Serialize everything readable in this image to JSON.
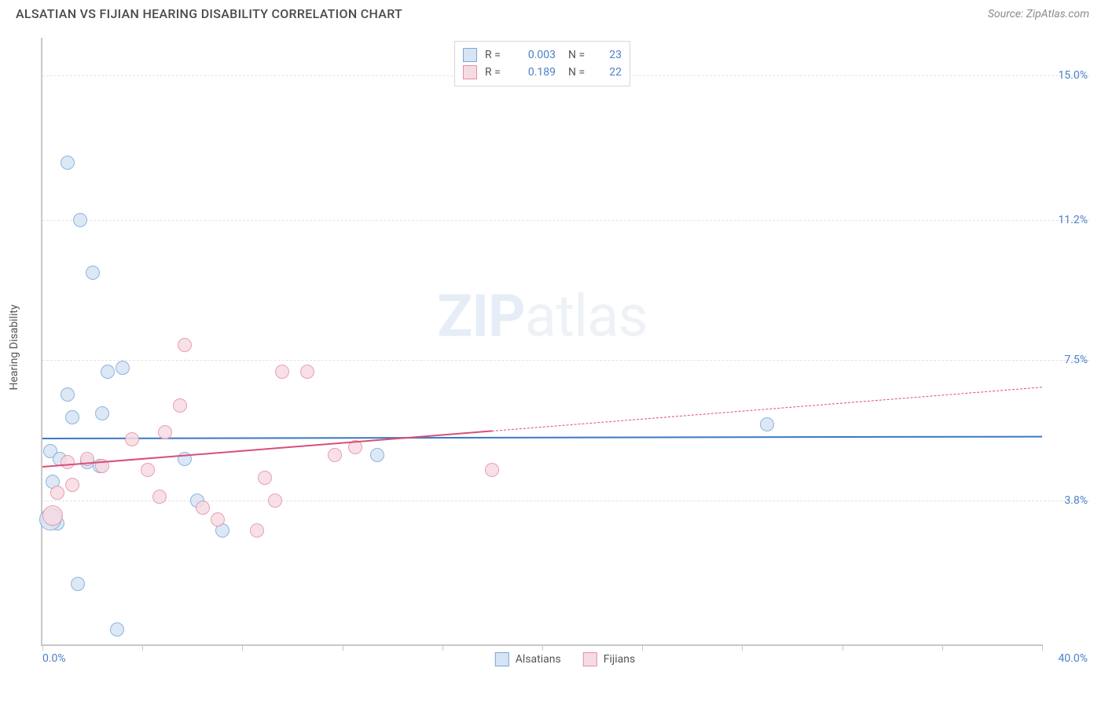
{
  "header": {
    "title": "ALSATIAN VS FIJIAN HEARING DISABILITY CORRELATION CHART",
    "source": "Source: ZipAtlas.com"
  },
  "watermark": {
    "prefix": "ZIP",
    "suffix": "atlas"
  },
  "axes": {
    "y_title": "Hearing Disability",
    "x_min_label": "0.0%",
    "x_max_label": "40.0%",
    "xlim": [
      0,
      40
    ],
    "ylim": [
      0,
      16
    ],
    "y_ticks": [
      {
        "value": 3.8,
        "label": "3.8%"
      },
      {
        "value": 7.5,
        "label": "7.5%"
      },
      {
        "value": 11.2,
        "label": "11.2%"
      },
      {
        "value": 15.0,
        "label": "15.0%"
      }
    ],
    "x_tick_positions": [
      0,
      4,
      8,
      12,
      16,
      20,
      24,
      28,
      32,
      36,
      40
    ],
    "grid_color": "#e3e3e3",
    "axis_color": "#c8c8c8",
    "label_color": "#4a7fc9",
    "label_fontsize": 14
  },
  "series": [
    {
      "id": "alsatians",
      "label": "Alsatians",
      "fill": "#d6e4f4",
      "stroke": "#7ba7d9",
      "marker_radius": 9,
      "marker_opacity": 0.85,
      "R": "0.003",
      "N": "23",
      "trend": {
        "color": "#3b78c4",
        "x0": 0,
        "y0": 5.45,
        "x1": 40,
        "y1": 5.5,
        "solid_until_x": 40
      },
      "points": [
        {
          "x": 1.0,
          "y": 12.7
        },
        {
          "x": 1.5,
          "y": 11.2
        },
        {
          "x": 2.0,
          "y": 9.8
        },
        {
          "x": 1.0,
          "y": 6.6
        },
        {
          "x": 2.6,
          "y": 7.2
        },
        {
          "x": 3.2,
          "y": 7.3
        },
        {
          "x": 1.2,
          "y": 6.0
        },
        {
          "x": 2.4,
          "y": 6.1
        },
        {
          "x": 0.3,
          "y": 5.1
        },
        {
          "x": 1.8,
          "y": 4.8
        },
        {
          "x": 2.3,
          "y": 4.7
        },
        {
          "x": 0.4,
          "y": 4.3
        },
        {
          "x": 0.5,
          "y": 3.4
        },
        {
          "x": 0.6,
          "y": 3.2
        },
        {
          "x": 6.2,
          "y": 3.8
        },
        {
          "x": 7.2,
          "y": 3.0
        },
        {
          "x": 3.0,
          "y": 0.4
        },
        {
          "x": 1.4,
          "y": 1.6
        },
        {
          "x": 13.4,
          "y": 5.0
        },
        {
          "x": 29.0,
          "y": 5.8
        },
        {
          "x": 0.3,
          "y": 3.3,
          "r": 14
        },
        {
          "x": 0.7,
          "y": 4.9
        },
        {
          "x": 5.7,
          "y": 4.9
        }
      ]
    },
    {
      "id": "fijians",
      "label": "Fijians",
      "fill": "#f7dbe3",
      "stroke": "#e38fa6",
      "marker_radius": 9,
      "marker_opacity": 0.85,
      "R": "0.189",
      "N": "22",
      "trend": {
        "color": "#d94f77",
        "x0": 0,
        "y0": 4.7,
        "x1": 40,
        "y1": 6.8,
        "solid_until_x": 18
      },
      "points": [
        {
          "x": 5.7,
          "y": 7.9
        },
        {
          "x": 9.6,
          "y": 7.2
        },
        {
          "x": 10.6,
          "y": 7.2
        },
        {
          "x": 5.5,
          "y": 6.3
        },
        {
          "x": 3.6,
          "y": 5.4
        },
        {
          "x": 4.9,
          "y": 5.6
        },
        {
          "x": 1.0,
          "y": 4.8
        },
        {
          "x": 1.8,
          "y": 4.9
        },
        {
          "x": 2.4,
          "y": 4.7
        },
        {
          "x": 4.2,
          "y": 4.6
        },
        {
          "x": 8.9,
          "y": 4.4
        },
        {
          "x": 11.7,
          "y": 5.0
        },
        {
          "x": 12.5,
          "y": 5.2
        },
        {
          "x": 0.6,
          "y": 4.0
        },
        {
          "x": 1.2,
          "y": 4.2
        },
        {
          "x": 4.7,
          "y": 3.9
        },
        {
          "x": 6.4,
          "y": 3.6
        },
        {
          "x": 7.0,
          "y": 3.3
        },
        {
          "x": 8.6,
          "y": 3.0
        },
        {
          "x": 9.3,
          "y": 3.8
        },
        {
          "x": 18.0,
          "y": 4.6
        },
        {
          "x": 0.4,
          "y": 3.4,
          "r": 13
        }
      ]
    }
  ],
  "legend_top": {
    "r_label": "R =",
    "n_label": "N ="
  },
  "legend_bottom": [
    {
      "series": "alsatians"
    },
    {
      "series": "fijians"
    }
  ]
}
